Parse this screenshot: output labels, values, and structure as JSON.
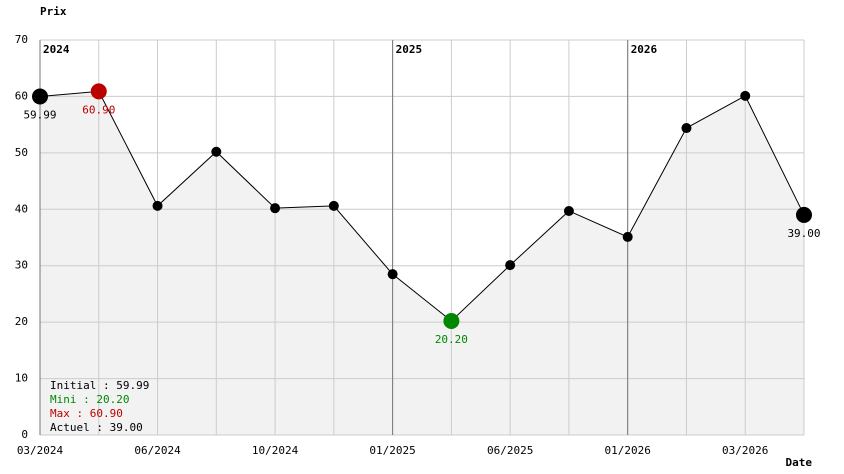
{
  "chart_data": {
    "type": "line",
    "y_label": "Prix",
    "x_label": "Date",
    "categories": [
      "03/2024",
      null,
      "06/2024",
      null,
      "10/2024",
      null,
      "01/2025",
      null,
      "06/2025",
      null,
      "01/2026",
      null,
      "03/2026",
      null
    ],
    "values": [
      59.99,
      60.9,
      40.6,
      50.2,
      40.2,
      40.6,
      28.5,
      20.2,
      30.1,
      39.7,
      35.1,
      54.4,
      60.1,
      39.0
    ],
    "value_labels": [
      "59.99",
      "60.90",
      null,
      null,
      null,
      null,
      null,
      "20.20",
      null,
      null,
      null,
      null,
      null,
      "39.00"
    ],
    "point_colors": [
      "#000000",
      "#bb0000",
      "#000000",
      "#000000",
      "#000000",
      "#000000",
      "#000000",
      "#008800",
      "#000000",
      "#000000",
      "#000000",
      "#000000",
      "#000000",
      "#000000"
    ],
    "color": "#000000",
    "area_color": "#f2f2f2",
    "year_markers": [
      {
        "label": "2024",
        "at": 0
      },
      {
        "label": "2025",
        "at": 6
      },
      {
        "label": "2026",
        "at": 10
      }
    ],
    "ylim": [
      0,
      70
    ],
    "yticks": [
      0,
      10,
      20,
      30,
      40,
      50,
      60,
      70
    ],
    "grid": true,
    "stats": [
      {
        "text": "Initial : 59.99",
        "color": "#000000"
      },
      {
        "text": "Mini : 20.20",
        "color": "#008800"
      },
      {
        "text": "Max : 60.90",
        "color": "#bb0000"
      },
      {
        "text": "Actuel : 39.00",
        "color": "#000000"
      }
    ]
  }
}
